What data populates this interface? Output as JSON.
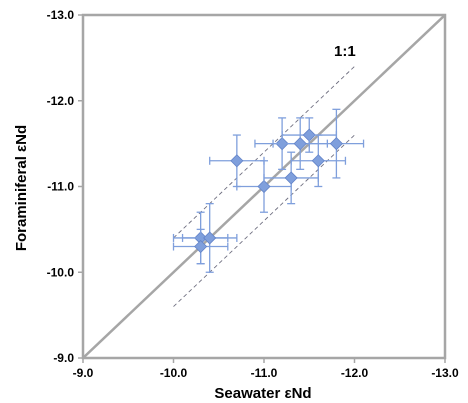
{
  "chart_data": {
    "type": "scatter",
    "xlabel": "Seawater εNd",
    "ylabel": "Foraminiferal εNd",
    "xlim": [
      -9.0,
      -13.0
    ],
    "ylim": [
      -9.0,
      -13.0
    ],
    "x_ticks": [
      -9.0,
      -10.0,
      -11.0,
      -12.0,
      -13.0
    ],
    "y_ticks": [
      -9.0,
      -10.0,
      -11.0,
      -12.0,
      -13.0
    ],
    "x_tick_labels": [
      "-9.0",
      "-10.0",
      "-11.0",
      "-12.0",
      "-13.0"
    ],
    "y_tick_labels": [
      "-9.0",
      "-10.0",
      "-11.0",
      "-12.0",
      "-13.0"
    ],
    "grid": false,
    "reference_line_label": "1:1",
    "reference_offset": 0.4,
    "points": [
      {
        "x": -10.3,
        "y": -10.4,
        "xerr": 0.3,
        "yerr": 0.3
      },
      {
        "x": -10.3,
        "y": -10.3,
        "xerr": 0.3,
        "yerr": 0.2
      },
      {
        "x": -10.4,
        "y": -10.4,
        "xerr": 0.3,
        "yerr": 0.4
      },
      {
        "x": -10.7,
        "y": -11.3,
        "xerr": 0.3,
        "yerr": 0.3
      },
      {
        "x": -11.0,
        "y": -11.0,
        "xerr": 0.3,
        "yerr": 0.3
      },
      {
        "x": -11.2,
        "y": -11.5,
        "xerr": 0.3,
        "yerr": 0.3
      },
      {
        "x": -11.3,
        "y": -11.1,
        "xerr": 0.3,
        "yerr": 0.3
      },
      {
        "x": -11.4,
        "y": -11.5,
        "xerr": 0.3,
        "yerr": 0.3
      },
      {
        "x": -11.5,
        "y": -11.6,
        "xerr": 0.3,
        "yerr": 0.2
      },
      {
        "x": -11.6,
        "y": -11.3,
        "xerr": 0.3,
        "yerr": 0.3
      },
      {
        "x": -11.8,
        "y": -11.5,
        "xerr": 0.3,
        "yerr": 0.4
      }
    ],
    "colors": {
      "marker": "#7f9fdc",
      "marker_stroke": "#6283c8",
      "error_bar": "#7f9fdc",
      "axis": "#a6a6a6",
      "one_to_one_line": "#a6a6a6",
      "offset_line": "#6f6f80"
    }
  }
}
